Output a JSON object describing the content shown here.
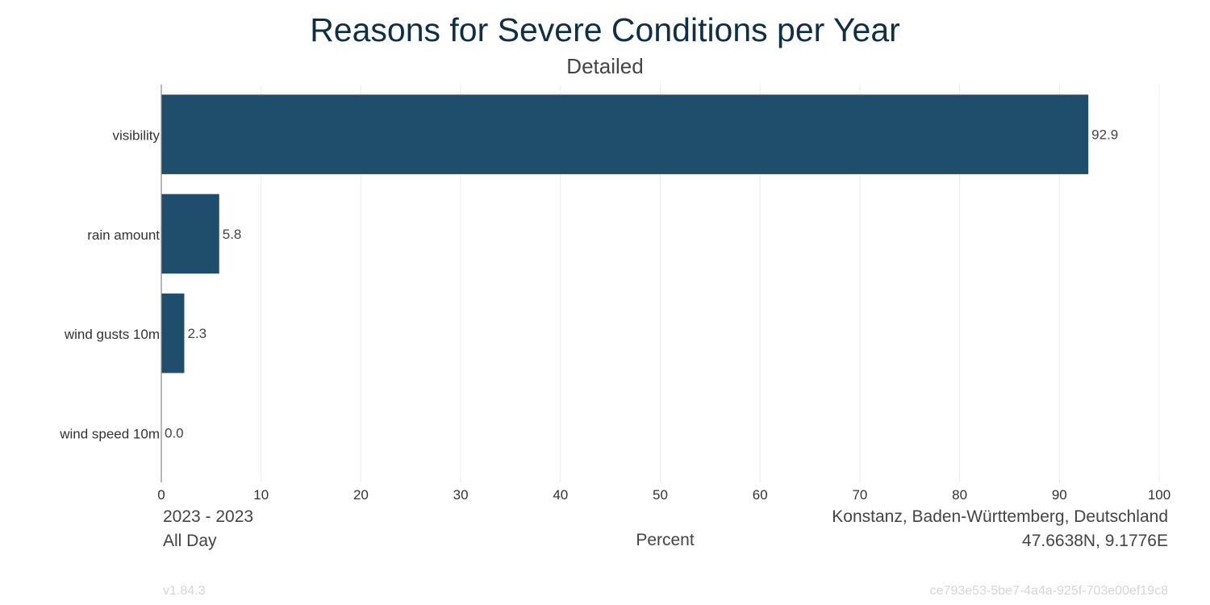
{
  "chart_data": {
    "type": "bar",
    "orientation": "horizontal",
    "title": "Reasons for Severe Conditions per Year",
    "subtitle": "Detailed",
    "categories": [
      "visibility",
      "rain amount",
      "wind gusts 10m",
      "wind speed 10m"
    ],
    "values": [
      92.9,
      5.8,
      2.3,
      0.0
    ],
    "value_labels": [
      "92.9",
      "5.8",
      "2.3",
      "0.0"
    ],
    "xlabel": "Percent",
    "ylabel": "",
    "xlim": [
      0,
      100
    ],
    "xticks": [
      0,
      10,
      20,
      30,
      40,
      50,
      60,
      70,
      80,
      90,
      100
    ],
    "grid": true,
    "bar_color": "#1f4e6d"
  },
  "footer": {
    "period": "2023 - 2023",
    "time_of_day": "All Day",
    "location": "Konstanz, Baden-Württemberg, Deutschland",
    "coordinates": "47.6638N, 9.1776E",
    "version": "v1.84.3",
    "id": "ce793e53-5be7-4a4a-925f-703e00ef19c8"
  }
}
